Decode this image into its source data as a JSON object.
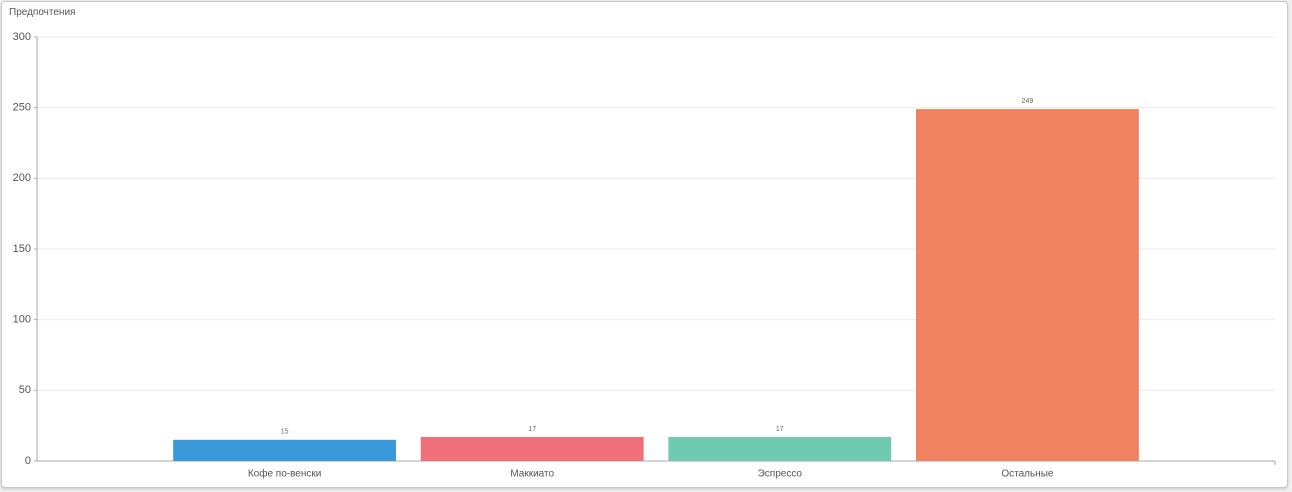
{
  "chart_data": {
    "type": "bar",
    "title": "Предпочтения",
    "categories": [
      "Кофе по-венски",
      "Маккиато",
      "Эспрессо",
      "Остальные"
    ],
    "values": [
      15,
      17,
      17,
      249
    ],
    "colors": [
      "#3a9ad9",
      "#ef7079",
      "#6fcab1",
      "#f08260"
    ],
    "ylim": [
      0,
      300
    ],
    "yticks": [
      0,
      50,
      100,
      150,
      200,
      250,
      300
    ],
    "grid": true
  }
}
